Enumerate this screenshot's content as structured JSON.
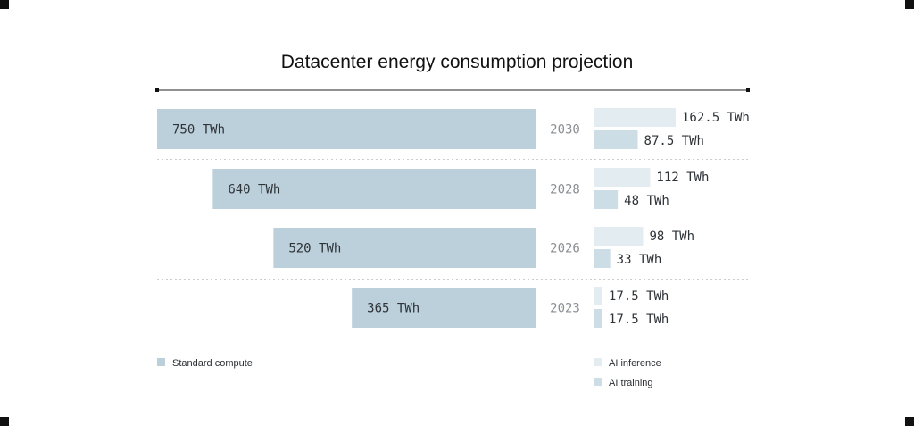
{
  "chart_data": {
    "type": "bar",
    "title": "Datacenter energy consumption projection",
    "categories": [
      "2030",
      "2028",
      "2026",
      "2023"
    ],
    "series": [
      {
        "name": "Standard compute",
        "values": [
          750,
          640,
          520,
          365
        ],
        "labels": [
          "750 TWh",
          "640 TWh",
          "520 TWh",
          "365 TWh"
        ],
        "color": "#bcd0dc"
      },
      {
        "name": "AI inference",
        "values": [
          162.5,
          112,
          98,
          17.5
        ],
        "labels": [
          "162.5 TWh",
          "112 TWh",
          "98 TWh",
          "17.5 TWh"
        ],
        "color": "#e3ecf1"
      },
      {
        "name": "AI training",
        "values": [
          87.5,
          48,
          33,
          17.5
        ],
        "labels": [
          "87.5 TWh",
          "48 TWh",
          "33 TWh",
          "17.5 TWh"
        ],
        "color": "#cddde6"
      }
    ],
    "xlabel": "",
    "ylabel": "",
    "legend": [
      {
        "label": "Standard compute",
        "color": "#bcd0dc",
        "position": "bottom-left"
      },
      {
        "label": "AI inference",
        "color": "#e3ecf1",
        "position": "bottom-right"
      },
      {
        "label": "AI training",
        "color": "#cddde6",
        "position": "bottom-right"
      }
    ],
    "grid": false
  }
}
